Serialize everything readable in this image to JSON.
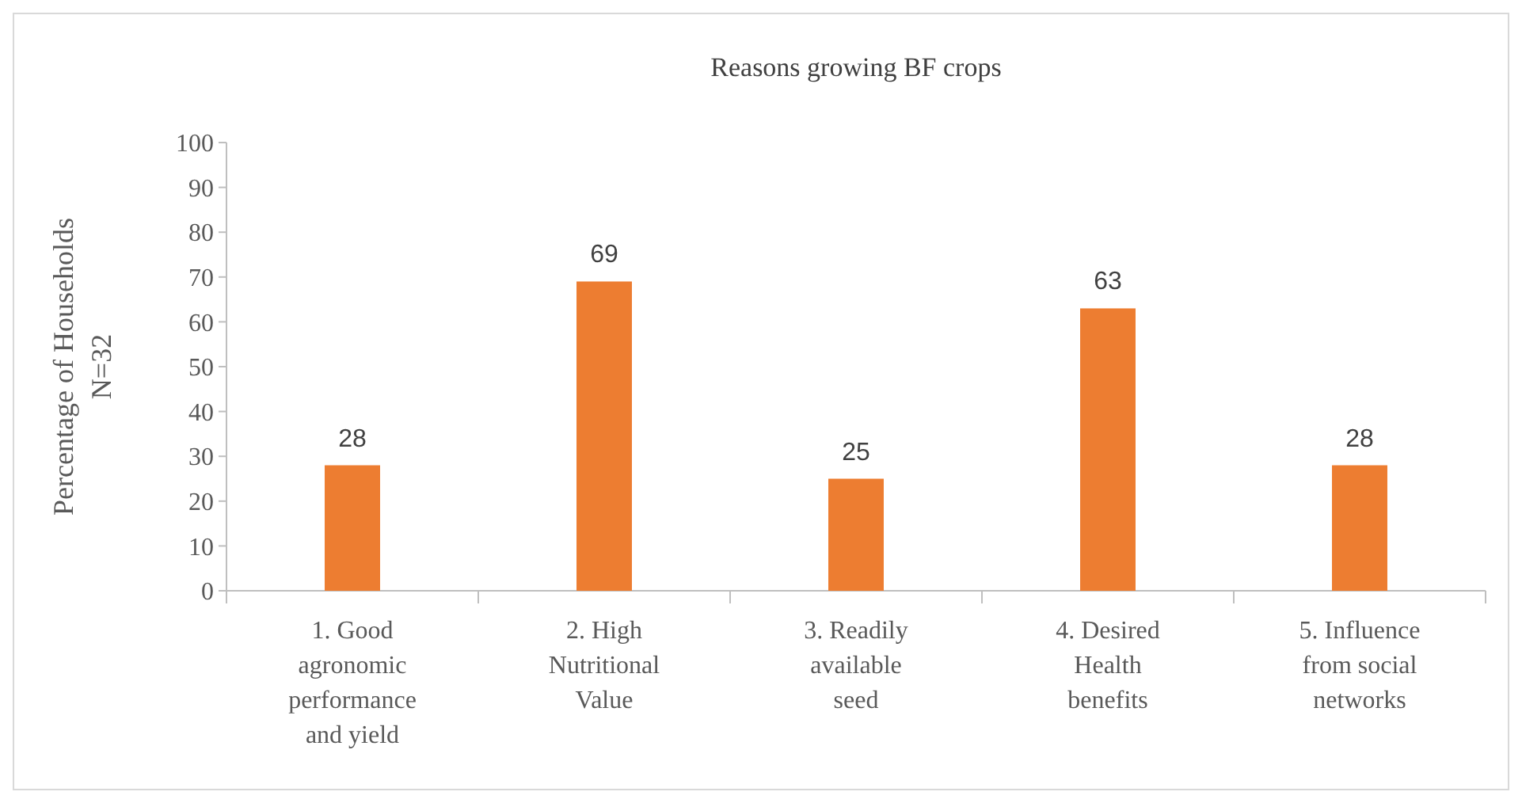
{
  "chart_data": {
    "type": "bar",
    "title": "Reasons growing BF crops",
    "ylabel": "Percentage of Households N=32",
    "categories": [
      "1. Good agronomic performance and yield",
      "2. High Nutritional Value",
      "3. Readily available seed",
      "4. Desired Health benefits",
      "5. Influence from social networks"
    ],
    "values": [
      28,
      69,
      25,
      63,
      28
    ],
    "color": "#ed7d31",
    "data_labels": true,
    "ylim": [
      0,
      100
    ],
    "yticks": [
      0,
      10,
      20,
      30,
      40,
      50,
      60,
      70,
      80,
      90,
      100
    ]
  }
}
